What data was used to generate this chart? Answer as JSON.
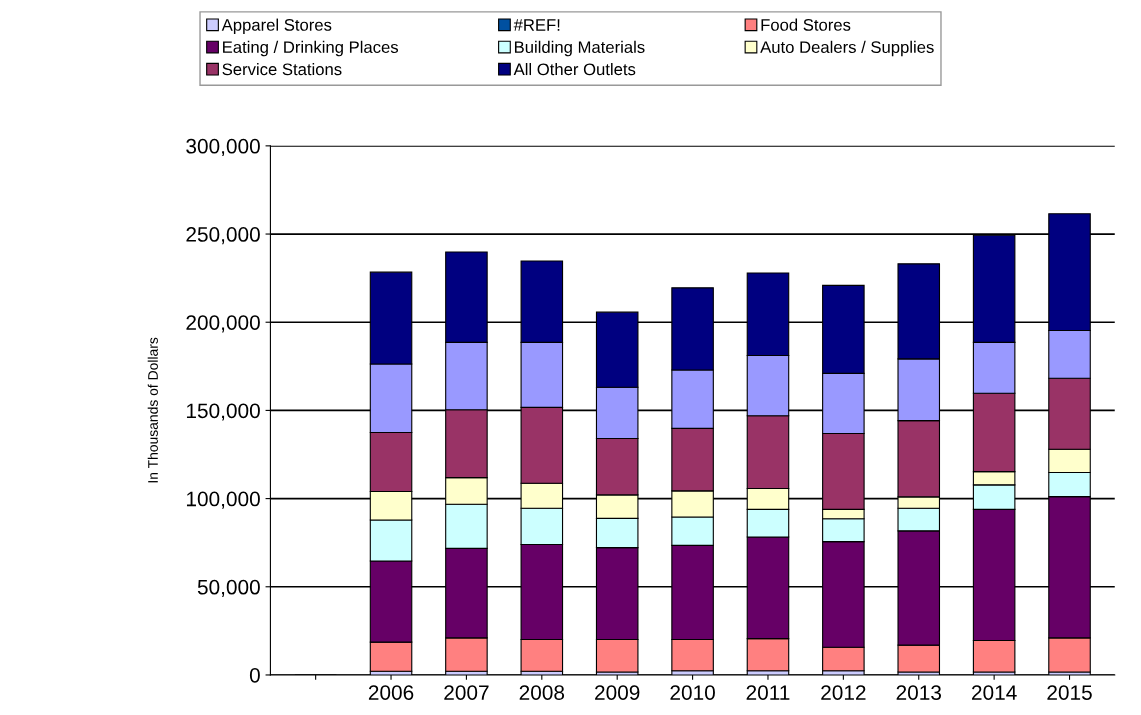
{
  "chart_data": {
    "type": "bar",
    "stacked": true,
    "ylabel": "In Thousands of Dollars",
    "categories": [
      null,
      "2006",
      "2007",
      "2008",
      "2009",
      "2010",
      "2011",
      "2012",
      "2013",
      "2014",
      "2015"
    ],
    "series": [
      {
        "name": "Apparel Stores",
        "color": "#ccccff",
        "values": [
          null,
          2100,
          2100,
          2100,
          1700,
          2400,
          2400,
          2400,
          1700,
          1700,
          1700
        ]
      },
      {
        "name": "#REF!",
        "color": "#0050a0",
        "values": [
          0,
          null,
          null,
          null,
          null,
          null,
          null,
          null,
          null,
          null,
          null
        ]
      },
      {
        "name": "Food Stores",
        "color": "#ff8080",
        "values": [
          null,
          16500,
          18900,
          18000,
          18400,
          17700,
          18200,
          13300,
          15200,
          17800,
          19300
        ]
      },
      {
        "name": "Eating / Drinking Places",
        "color": "#660066",
        "values": [
          null,
          46000,
          50800,
          53900,
          52100,
          53400,
          57600,
          59900,
          64800,
          74400,
          80100
        ]
      },
      {
        "name": "Building Materials",
        "color": "#ccffff",
        "values": [
          null,
          23300,
          25000,
          20500,
          16600,
          16100,
          15700,
          13000,
          12800,
          13900,
          13700
        ]
      },
      {
        "name": "Auto Dealers / Supplies",
        "color": "#ffffcc",
        "values": [
          null,
          16100,
          15100,
          14200,
          13300,
          14800,
          11800,
          5300,
          6500,
          7500,
          13200
        ]
      },
      {
        "name": "Service Stations",
        "color": "#993366",
        "values": [
          null,
          33500,
          38500,
          43000,
          32000,
          35400,
          41300,
          43000,
          43200,
          44400,
          40200
        ]
      },
      {
        "color": "#9999ff",
        "values": [
          null,
          38800,
          38200,
          36900,
          29000,
          33100,
          34100,
          34100,
          35000,
          28900,
          27100
        ]
      },
      {
        "name": "All Other Outlets",
        "color": "#000080",
        "values": [
          null,
          52100,
          51200,
          46100,
          42600,
          46600,
          46800,
          49900,
          53900,
          60700,
          66200
        ]
      }
    ],
    "ylim": [
      0,
      300000
    ],
    "yticks": [
      {
        "value": 0,
        "label": "0"
      },
      {
        "value": 50000,
        "label": "50,000"
      },
      {
        "value": 100000,
        "label": "100,000"
      },
      {
        "value": 150000,
        "label": "150,000"
      },
      {
        "value": 200000,
        "label": "200,000"
      },
      {
        "value": 250000,
        "label": "250,000"
      },
      {
        "value": 300000,
        "label": "300,000"
      }
    ],
    "grid": "y",
    "legend": "top"
  }
}
